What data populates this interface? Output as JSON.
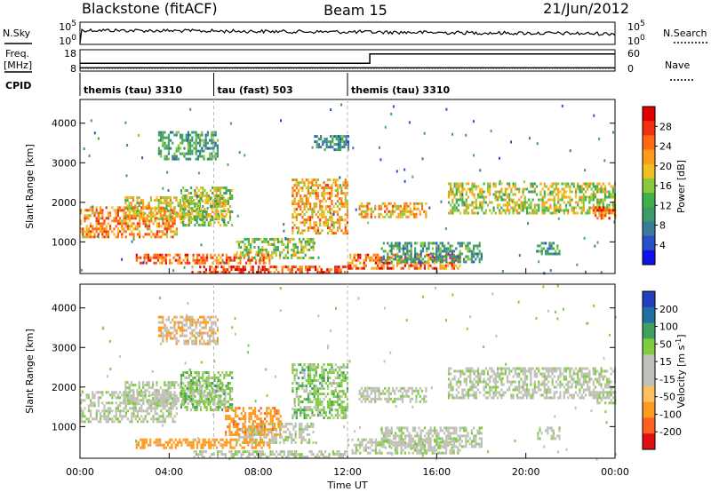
{
  "header": {
    "station": "Blackstone (fitACF)",
    "beam": "Beam 15",
    "date": "21/Jun/2012"
  },
  "colors": {
    "power_scale": [
      "#1010e8",
      "#2850c8",
      "#3c7a9a",
      "#3d9a6a",
      "#42b04a",
      "#8cc83c",
      "#f0c020",
      "#ff9a1a",
      "#ff6a10",
      "#f03010",
      "#e00000"
    ],
    "velocity_scale": [
      "#2040c0",
      "#2070a0",
      "#40a060",
      "#80cc40",
      "#c0c0b8",
      "#c0c0b8",
      "#ffc060",
      "#ff9a20",
      "#ff6020",
      "#e01010"
    ]
  },
  "panels": {
    "nsky": {
      "label": "N.Sky",
      "right_label": "N.Search",
      "ticks_left": [
        "10^5",
        "10^0"
      ],
      "ticks_right": [
        "10^5",
        "10^0"
      ]
    },
    "freq": {
      "label_line1": "Freq.",
      "label_line2": "[MHz]",
      "right_label": "Nave",
      "ticks_left": [
        "18",
        "8"
      ],
      "ticks_right": [
        "60",
        "0"
      ],
      "freq_steps": [
        {
          "t": 0.0,
          "v": 9.5
        },
        {
          "t": 1.8,
          "v": 9.5
        },
        {
          "t": 13.0,
          "v": 9.5
        },
        {
          "t": 24.0,
          "v": 9.5
        }
      ],
      "nave_steps": [
        {
          "t": 0.0,
          "v": 22
        },
        {
          "t": 13.0,
          "v": 22
        },
        {
          "t": 13.0,
          "v": 48
        },
        {
          "t": 24.0,
          "v": 48
        }
      ]
    },
    "cpid": {
      "label": "CPID",
      "segments": [
        {
          "t_start": 0.0,
          "t_end": 6.0,
          "text": "themis (tau) 3310"
        },
        {
          "t_start": 6.0,
          "t_end": 12.0,
          "text": "tau (fast) 503"
        },
        {
          "t_start": 12.0,
          "t_end": 24.0,
          "text": "themis (tau) 3310"
        }
      ]
    }
  },
  "chart_data": [
    {
      "type": "heatmap",
      "name": "Power",
      "ylabel": "Slant Range [km]",
      "yticks": [
        1000,
        2000,
        3000,
        4000
      ],
      "ylim": [
        200,
        4600
      ],
      "xlim": [
        0,
        24
      ],
      "colorbar_label": "Power [dB]",
      "colorbar_ticks": [
        "28",
        "24",
        "20",
        "16",
        "12",
        "8",
        "4"
      ],
      "colorbar_range": [
        0,
        30
      ],
      "echo_regions": [
        {
          "t0": 0.0,
          "t1": 4.3,
          "r0": 1150,
          "r1": 1900,
          "value": 22
        },
        {
          "t0": 2.0,
          "t1": 6.5,
          "r0": 1550,
          "r1": 2150,
          "value": 18
        },
        {
          "t0": 4.5,
          "t1": 6.8,
          "r0": 1400,
          "r1": 2400,
          "value": 14
        },
        {
          "t0": 3.5,
          "t1": 6.2,
          "r0": 3100,
          "r1": 3800,
          "value": 10
        },
        {
          "t0": 7.0,
          "t1": 10.5,
          "r0": 600,
          "r1": 1100,
          "value": 14
        },
        {
          "t0": 2.5,
          "t1": 8.5,
          "r0": 450,
          "r1": 700,
          "value": 24
        },
        {
          "t0": 5.0,
          "t1": 12.0,
          "r0": 250,
          "r1": 400,
          "value": 26
        },
        {
          "t0": 9.5,
          "t1": 12.0,
          "r0": 1200,
          "r1": 2600,
          "value": 20
        },
        {
          "t0": 10.5,
          "t1": 12.0,
          "r0": 3300,
          "r1": 3700,
          "value": 8
        },
        {
          "t0": 12.0,
          "t1": 17.0,
          "r0": 300,
          "r1": 700,
          "value": 24
        },
        {
          "t0": 12.5,
          "t1": 15.5,
          "r0": 1600,
          "r1": 2000,
          "value": 20
        },
        {
          "t0": 13.5,
          "t1": 18.0,
          "r0": 500,
          "r1": 1000,
          "value": 10
        },
        {
          "t0": 16.5,
          "t1": 24.0,
          "r0": 1700,
          "r1": 2500,
          "value": 16
        },
        {
          "t0": 20.5,
          "t1": 21.5,
          "r0": 700,
          "r1": 1000,
          "value": 10
        },
        {
          "t0": 23.0,
          "t1": 24.0,
          "r0": 1600,
          "r1": 1900,
          "value": 24
        }
      ]
    },
    {
      "type": "heatmap",
      "name": "Velocity",
      "ylabel": "Slant Range [km]",
      "yticks": [
        1000,
        2000,
        3000,
        4000
      ],
      "ylim": [
        200,
        4600
      ],
      "xlim": [
        0,
        24
      ],
      "xlabel": "Time UT",
      "xticks": [
        "00:00",
        "04:00",
        "08:00",
        "12:00",
        "16:00",
        "20:00",
        "00:00"
      ],
      "xtick_values": [
        0,
        4,
        8,
        12,
        16,
        20,
        24
      ],
      "colorbar_label": "Velocity [m s^-1]",
      "colorbar_ticks": [
        "200",
        "100",
        "50",
        "15",
        "-15",
        "-50",
        "-100",
        "-200"
      ],
      "echo_regions": [
        {
          "t0": 0.0,
          "t1": 4.3,
          "r0": 1150,
          "r1": 1900,
          "value": 0
        },
        {
          "t0": 2.0,
          "t1": 6.5,
          "r0": 1550,
          "r1": 2150,
          "value": 0
        },
        {
          "t0": 4.5,
          "t1": 6.8,
          "r0": 1400,
          "r1": 2400,
          "value": 20
        },
        {
          "t0": 3.5,
          "t1": 6.2,
          "r0": 3100,
          "r1": 3800,
          "value": -30
        },
        {
          "t0": 7.0,
          "t1": 10.5,
          "r0": 600,
          "r1": 1100,
          "value": 0
        },
        {
          "t0": 6.5,
          "t1": 9.0,
          "r0": 800,
          "r1": 1500,
          "value": -60
        },
        {
          "t0": 2.5,
          "t1": 8.5,
          "r0": 450,
          "r1": 700,
          "value": -50
        },
        {
          "t0": 5.0,
          "t1": 12.0,
          "r0": 250,
          "r1": 400,
          "value": 0
        },
        {
          "t0": 9.5,
          "t1": 12.0,
          "r0": 1200,
          "r1": 2600,
          "value": 20
        },
        {
          "t0": 12.0,
          "t1": 17.0,
          "r0": 300,
          "r1": 700,
          "value": 0
        },
        {
          "t0": 12.5,
          "t1": 15.5,
          "r0": 1600,
          "r1": 2000,
          "value": 0
        },
        {
          "t0": 13.5,
          "t1": 18.0,
          "r0": 500,
          "r1": 1000,
          "value": 0
        },
        {
          "t0": 16.5,
          "t1": 24.0,
          "r0": 1700,
          "r1": 2500,
          "value": 0
        },
        {
          "t0": 20.5,
          "t1": 21.5,
          "r0": 700,
          "r1": 1000,
          "value": 0
        },
        {
          "t0": 23.0,
          "t1": 24.0,
          "r0": 1600,
          "r1": 1900,
          "value": 0
        }
      ]
    }
  ]
}
